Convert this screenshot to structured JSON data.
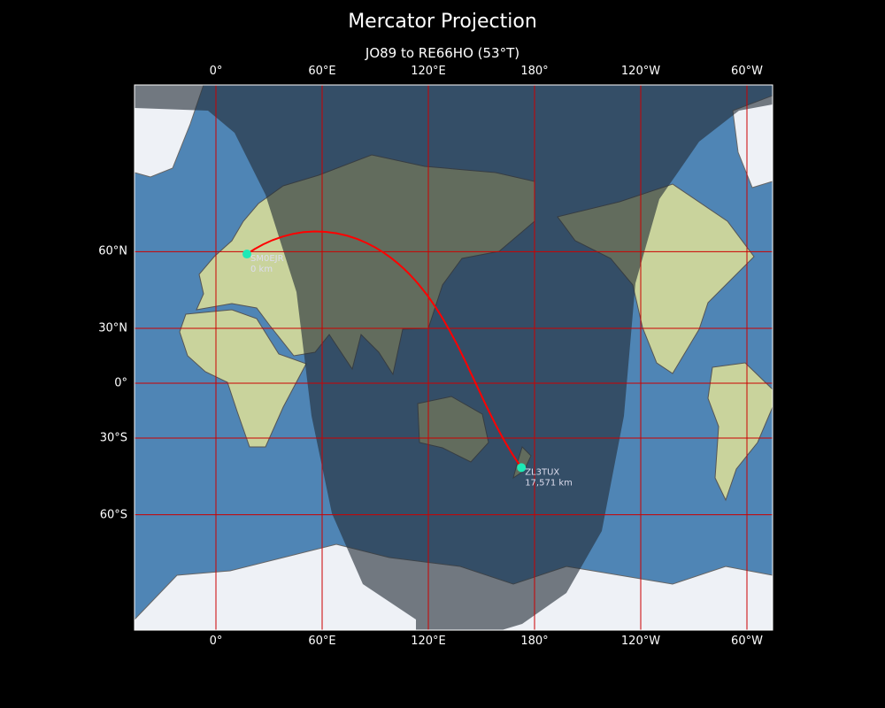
{
  "title": "Mercator Projection",
  "subtitle": "JO89 to RE66HO (53°T)",
  "chart_data": {
    "type": "map",
    "projection": "Mercator",
    "lon_ticks": [
      {
        "lon": 0,
        "label": "0°"
      },
      {
        "lon": 60,
        "label": "60°E"
      },
      {
        "lon": 120,
        "label": "120°E"
      },
      {
        "lon": 180,
        "label": "180°"
      },
      {
        "lon": 240,
        "label": "120°W"
      },
      {
        "lon": 300,
        "label": "60°W"
      }
    ],
    "lat_ticks": [
      {
        "lat": 60,
        "label": "60°N"
      },
      {
        "lat": 30,
        "label": "30°N"
      },
      {
        "lat": 0,
        "label": "0°"
      },
      {
        "lat": -30,
        "label": "30°S"
      },
      {
        "lat": -60,
        "label": "60°S"
      }
    ],
    "stations": [
      {
        "call": "SM0EJR",
        "distance": "0 km",
        "lat": 59.3,
        "lon": 17.5
      },
      {
        "call": "ZL3TUX",
        "distance": "17,571 km",
        "lat": -43.5,
        "lon": 172.6
      }
    ],
    "path_color": "#ff0000",
    "station_color": "#1de9b6",
    "grid_color": "#cc0000",
    "night_shading": true
  }
}
